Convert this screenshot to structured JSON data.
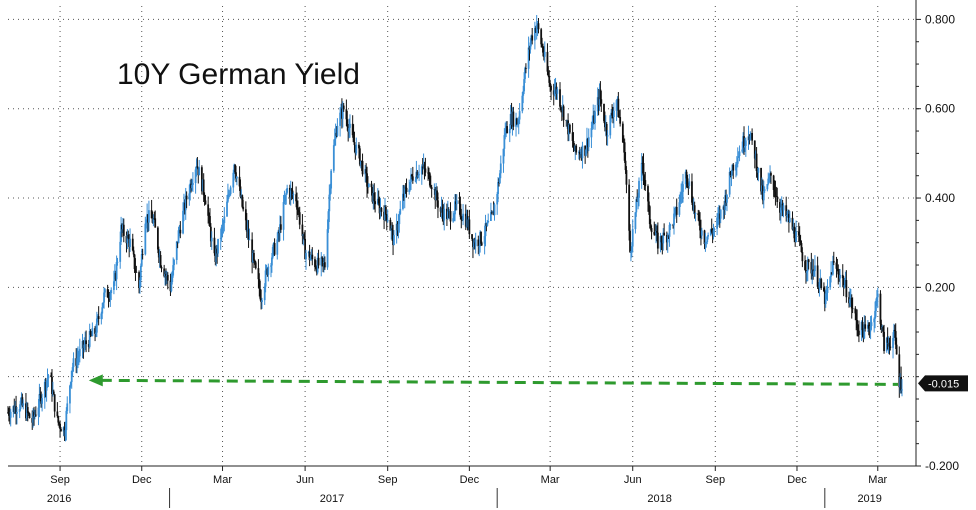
{
  "chart_data": {
    "type": "line",
    "title": "10Y German Yield",
    "xlabel": "",
    "ylabel": "",
    "ylim": [
      -0.2,
      0.83
    ],
    "y_ticks": [
      {
        "value": 0.8,
        "label": "0.800"
      },
      {
        "value": 0.6,
        "label": "0.600"
      },
      {
        "value": 0.4,
        "label": "0.400"
      },
      {
        "value": 0.2,
        "label": "0.200"
      },
      {
        "value": -0.2,
        "label": "-0.200"
      }
    ],
    "x_start": "2016-07-05",
    "x_end": "2019-03-28",
    "month_ticks": [
      {
        "date": "2016-09-01",
        "label": "Sep"
      },
      {
        "date": "2016-12-01",
        "label": "Dec"
      },
      {
        "date": "2017-03-01",
        "label": "Mar"
      },
      {
        "date": "2017-06-01",
        "label": "Jun"
      },
      {
        "date": "2017-09-01",
        "label": "Sep"
      },
      {
        "date": "2017-12-01",
        "label": "Dec"
      },
      {
        "date": "2018-03-01",
        "label": "Mar"
      },
      {
        "date": "2018-06-01",
        "label": "Jun"
      },
      {
        "date": "2018-09-01",
        "label": "Sep"
      },
      {
        "date": "2018-12-01",
        "label": "Dec"
      },
      {
        "date": "2019-03-01",
        "label": "Mar"
      }
    ],
    "year_labels": [
      {
        "date": "2016-08-31",
        "label": "2016"
      },
      {
        "date": "2017-07-01",
        "label": "2017"
      },
      {
        "date": "2018-07-01",
        "label": "2018"
      },
      {
        "date": "2019-02-20",
        "label": "2019"
      }
    ],
    "year_separators": [
      "2017-01-01",
      "2018-01-01",
      "2019-01-01"
    ],
    "series": [
      {
        "points": [
          [
            "2016-07-05",
            -0.08
          ],
          [
            "2016-07-19",
            -0.06
          ],
          [
            "2016-08-01",
            -0.1
          ],
          [
            "2016-08-10",
            -0.05
          ],
          [
            "2016-08-20",
            0.01
          ],
          [
            "2016-08-29",
            -0.1
          ],
          [
            "2016-09-06",
            -0.12
          ],
          [
            "2016-09-14",
            0.02
          ],
          [
            "2016-09-28",
            0.07
          ],
          [
            "2016-10-10",
            0.1
          ],
          [
            "2016-10-20",
            0.18
          ],
          [
            "2016-10-31",
            0.2
          ],
          [
            "2016-11-08",
            0.33
          ],
          [
            "2016-11-18",
            0.3
          ],
          [
            "2016-11-28",
            0.2
          ],
          [
            "2016-12-05",
            0.36
          ],
          [
            "2016-12-14",
            0.35
          ],
          [
            "2016-12-22",
            0.26
          ],
          [
            "2017-01-02",
            0.2
          ],
          [
            "2017-01-11",
            0.32
          ],
          [
            "2017-01-20",
            0.4
          ],
          [
            "2017-01-31",
            0.48
          ],
          [
            "2017-02-10",
            0.4
          ],
          [
            "2017-02-20",
            0.26
          ],
          [
            "2017-03-03",
            0.35
          ],
          [
            "2017-03-14",
            0.48
          ],
          [
            "2017-03-24",
            0.37
          ],
          [
            "2017-04-05",
            0.25
          ],
          [
            "2017-04-13",
            0.18
          ],
          [
            "2017-04-21",
            0.25
          ],
          [
            "2017-05-02",
            0.31
          ],
          [
            "2017-05-12",
            0.42
          ],
          [
            "2017-05-22",
            0.4
          ],
          [
            "2017-06-01",
            0.28
          ],
          [
            "2017-06-14",
            0.25
          ],
          [
            "2017-06-23",
            0.25
          ],
          [
            "2017-06-30",
            0.47
          ],
          [
            "2017-07-07",
            0.57
          ],
          [
            "2017-07-14",
            0.6
          ],
          [
            "2017-07-24",
            0.53
          ],
          [
            "2017-08-01",
            0.49
          ],
          [
            "2017-08-11",
            0.42
          ],
          [
            "2017-08-22",
            0.38
          ],
          [
            "2017-09-01",
            0.36
          ],
          [
            "2017-09-08",
            0.3
          ],
          [
            "2017-09-18",
            0.4
          ],
          [
            "2017-09-29",
            0.45
          ],
          [
            "2017-10-09",
            0.47
          ],
          [
            "2017-10-19",
            0.44
          ],
          [
            "2017-10-30",
            0.37
          ],
          [
            "2017-11-08",
            0.36
          ],
          [
            "2017-11-17",
            0.38
          ],
          [
            "2017-11-28",
            0.35
          ],
          [
            "2017-12-06",
            0.3
          ],
          [
            "2017-12-15",
            0.31
          ],
          [
            "2017-12-27",
            0.36
          ],
          [
            "2018-01-03",
            0.44
          ],
          [
            "2018-01-10",
            0.55
          ],
          [
            "2018-01-17",
            0.58
          ],
          [
            "2018-01-24",
            0.57
          ],
          [
            "2018-02-01",
            0.68
          ],
          [
            "2018-02-08",
            0.76
          ],
          [
            "2018-02-14",
            0.79
          ],
          [
            "2018-02-21",
            0.73
          ],
          [
            "2018-03-01",
            0.65
          ],
          [
            "2018-03-09",
            0.64
          ],
          [
            "2018-03-19",
            0.57
          ],
          [
            "2018-03-29",
            0.5
          ],
          [
            "2018-04-09",
            0.51
          ],
          [
            "2018-04-18",
            0.57
          ],
          [
            "2018-04-25",
            0.63
          ],
          [
            "2018-05-03",
            0.55
          ],
          [
            "2018-05-14",
            0.62
          ],
          [
            "2018-05-23",
            0.5
          ],
          [
            "2018-05-29",
            0.28
          ],
          [
            "2018-06-05",
            0.38
          ],
          [
            "2018-06-12",
            0.48
          ],
          [
            "2018-06-20",
            0.35
          ],
          [
            "2018-06-29",
            0.3
          ],
          [
            "2018-07-10",
            0.32
          ],
          [
            "2018-07-20",
            0.37
          ],
          [
            "2018-07-31",
            0.46
          ],
          [
            "2018-08-10",
            0.36
          ],
          [
            "2018-08-20",
            0.31
          ],
          [
            "2018-08-31",
            0.33
          ],
          [
            "2018-09-10",
            0.38
          ],
          [
            "2018-09-20",
            0.47
          ],
          [
            "2018-10-01",
            0.52
          ],
          [
            "2018-10-08",
            0.55
          ],
          [
            "2018-10-15",
            0.5
          ],
          [
            "2018-10-24",
            0.4
          ],
          [
            "2018-11-02",
            0.45
          ],
          [
            "2018-11-12",
            0.38
          ],
          [
            "2018-11-22",
            0.35
          ],
          [
            "2018-12-03",
            0.3
          ],
          [
            "2018-12-10",
            0.25
          ],
          [
            "2018-12-20",
            0.24
          ],
          [
            "2019-01-02",
            0.17
          ],
          [
            "2019-01-10",
            0.25
          ],
          [
            "2019-01-18",
            0.23
          ],
          [
            "2019-01-28",
            0.18
          ],
          [
            "2019-02-07",
            0.11
          ],
          [
            "2019-02-15",
            0.1
          ],
          [
            "2019-02-22",
            0.12
          ],
          [
            "2019-03-01",
            0.18
          ],
          [
            "2019-03-08",
            0.07
          ],
          [
            "2019-03-15",
            0.08
          ],
          [
            "2019-03-20",
            0.09
          ],
          [
            "2019-03-25",
            -0.01
          ],
          [
            "2019-03-28",
            -0.015
          ]
        ]
      }
    ],
    "last_value": {
      "value": -0.015,
      "label": "-0.015"
    },
    "reference_line": {
      "value": -0.015,
      "from_date": "2016-10-03",
      "style": "dashed",
      "color": "#2e9a2e"
    },
    "grid": true,
    "legend": "none",
    "colors": {
      "up": "#3a8fd6",
      "down": "#111111",
      "label_bg": "#111111"
    }
  }
}
